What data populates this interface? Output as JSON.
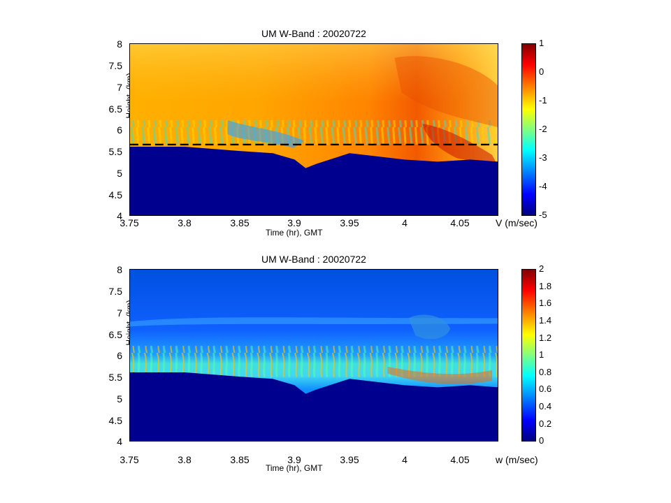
{
  "chart_data": [
    {
      "type": "heatmap",
      "title": "UM W-Band : 20020722",
      "xlabel": "Time (hr), GMT",
      "ylabel": "Height, (km)",
      "xlim": [
        3.75,
        4.085
      ],
      "ylim": [
        4,
        8
      ],
      "x_ticks": [
        "3.75",
        "3.8",
        "3.85",
        "3.9",
        "3.95",
        "4",
        "4.05"
      ],
      "y_ticks": [
        "8",
        "7.5",
        "7",
        "6.5",
        "6",
        "5.5",
        "5",
        "4.5",
        "4"
      ],
      "colorbar": {
        "label": "V (m/sec)",
        "range": [
          -5,
          1
        ],
        "ticks": [
          "1",
          "0",
          "-1",
          "-2",
          "-3",
          "-4",
          "-5"
        ],
        "colormap": "jet"
      },
      "annotations": [
        {
          "type": "dashed-line",
          "y": 5.65,
          "x_range": [
            3.75,
            4.085
          ],
          "color": "#000000"
        }
      ],
      "echo_base_profile": {
        "x": [
          3.75,
          3.8,
          3.85,
          3.88,
          3.9,
          3.91,
          3.92,
          3.95,
          4.0,
          4.03,
          4.06,
          4.085
        ],
        "y": [
          5.6,
          5.6,
          5.5,
          5.45,
          5.3,
          5.1,
          5.2,
          5.45,
          5.3,
          5.25,
          5.3,
          5.25
        ]
      }
    },
    {
      "type": "heatmap",
      "title": "UM W-Band : 20020722",
      "xlabel": "Time (hr), GMT",
      "ylabel": "Height, (km)",
      "xlim": [
        3.75,
        4.085
      ],
      "ylim": [
        4,
        8
      ],
      "x_ticks": [
        "3.75",
        "3.8",
        "3.85",
        "3.9",
        "3.95",
        "4",
        "4.05"
      ],
      "y_ticks": [
        "8",
        "7.5",
        "7",
        "6.5",
        "6",
        "5.5",
        "5",
        "4.5",
        "4"
      ],
      "colorbar": {
        "label": "w (m/sec)",
        "range": [
          0,
          2
        ],
        "ticks": [
          "2",
          "1.8",
          "1.6",
          "1.4",
          "1.2",
          "1",
          "0.8",
          "0.6",
          "0.4",
          "0.2",
          "0"
        ],
        "colormap": "jet"
      },
      "echo_base_profile": {
        "x": [
          3.75,
          3.8,
          3.85,
          3.88,
          3.9,
          3.91,
          3.92,
          3.95,
          4.0,
          4.03,
          4.06,
          4.085
        ],
        "y": [
          5.6,
          5.6,
          5.5,
          5.45,
          5.3,
          5.1,
          5.2,
          5.45,
          5.3,
          5.25,
          5.3,
          5.25
        ]
      }
    }
  ]
}
